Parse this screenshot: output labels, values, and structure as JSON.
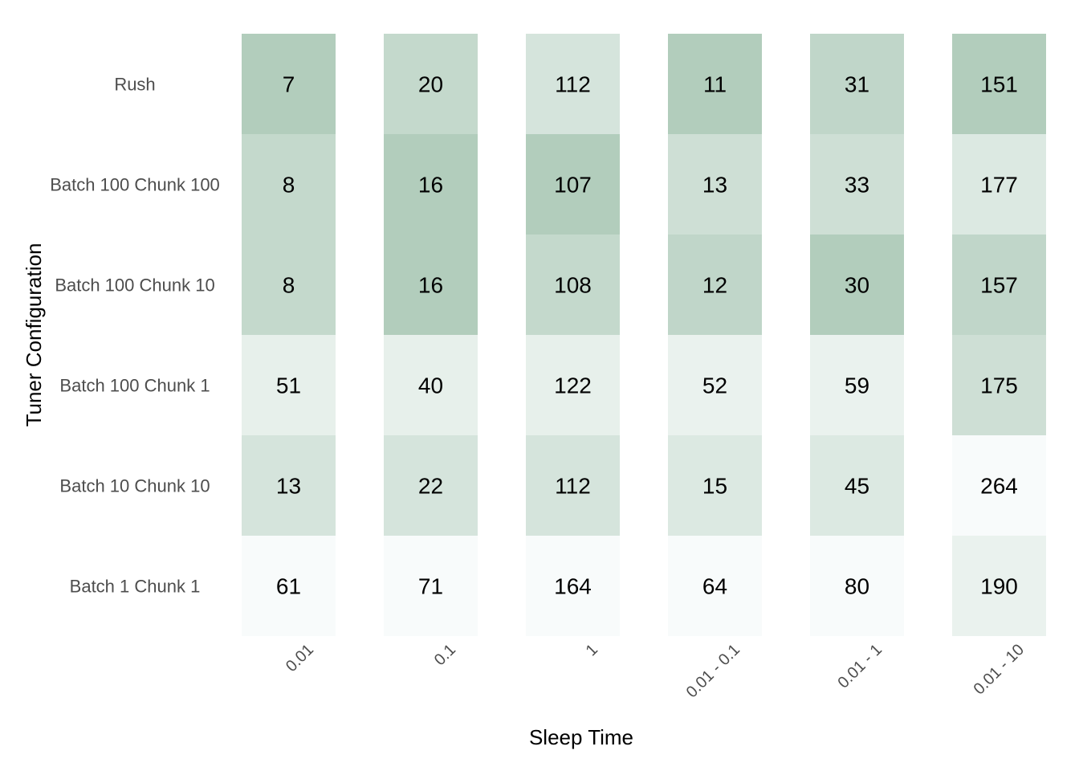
{
  "chart_data": {
    "type": "heatmap",
    "xlabel": "Sleep Time",
    "ylabel": "Tuner Configuration",
    "x_categories": [
      "0.01",
      "0.1",
      "1",
      "0.01 - 0.1",
      "0.01 - 1",
      "0.01 - 10"
    ],
    "y_categories": [
      "Rush",
      "Batch 100 Chunk 100",
      "Batch 100 Chunk 10",
      "Batch 100 Chunk 1",
      "Batch 10 Chunk 10",
      "Batch 1 Chunk 1"
    ],
    "values": [
      [
        7,
        20,
        112,
        11,
        31,
        151
      ],
      [
        8,
        16,
        107,
        13,
        33,
        177
      ],
      [
        8,
        16,
        108,
        12,
        30,
        157
      ],
      [
        51,
        40,
        122,
        52,
        59,
        175
      ],
      [
        13,
        22,
        112,
        15,
        45,
        264
      ],
      [
        61,
        71,
        164,
        64,
        80,
        190
      ]
    ],
    "color_scale": {
      "low": "#b2cdbc",
      "high": "#f8fbfb",
      "scaling": "per-column"
    },
    "legend": "none",
    "grid": false
  }
}
